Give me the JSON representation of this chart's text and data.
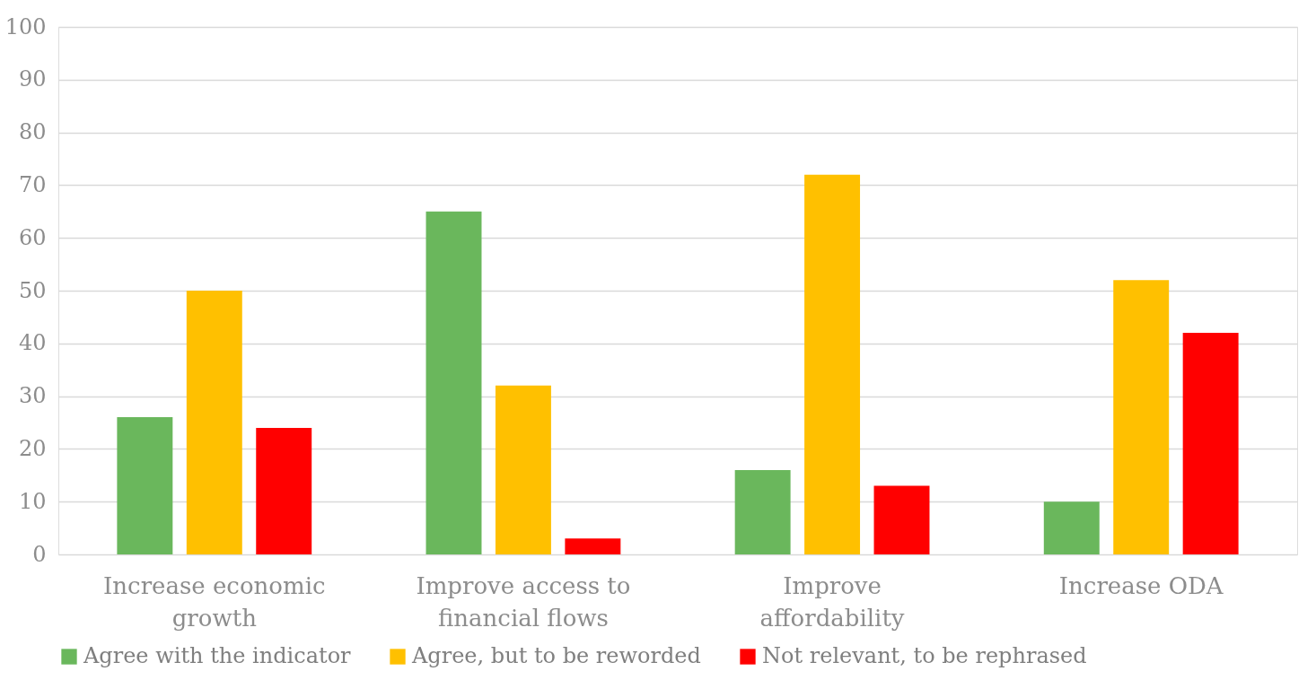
{
  "chart_data": {
    "type": "bar",
    "categories": [
      "Increase economic growth",
      "Improve access to financial flows",
      "Improve affordability",
      "Increase ODA"
    ],
    "series": [
      {
        "name": "Agree with the indicator",
        "color": "#6ab75c",
        "values": [
          26,
          65,
          16,
          10
        ]
      },
      {
        "name": "Agree, but to be reworded",
        "color": "#ffc000",
        "values": [
          50,
          32,
          72,
          52
        ]
      },
      {
        "name": "Not relevant, to be rephrased",
        "color": "#ff0000",
        "values": [
          24,
          3,
          13,
          42
        ]
      }
    ],
    "ylim": [
      0,
      100
    ],
    "yticks": [
      0,
      10,
      20,
      30,
      40,
      50,
      60,
      70,
      80,
      90,
      100
    ],
    "grid": "y",
    "legend": "bottom"
  }
}
